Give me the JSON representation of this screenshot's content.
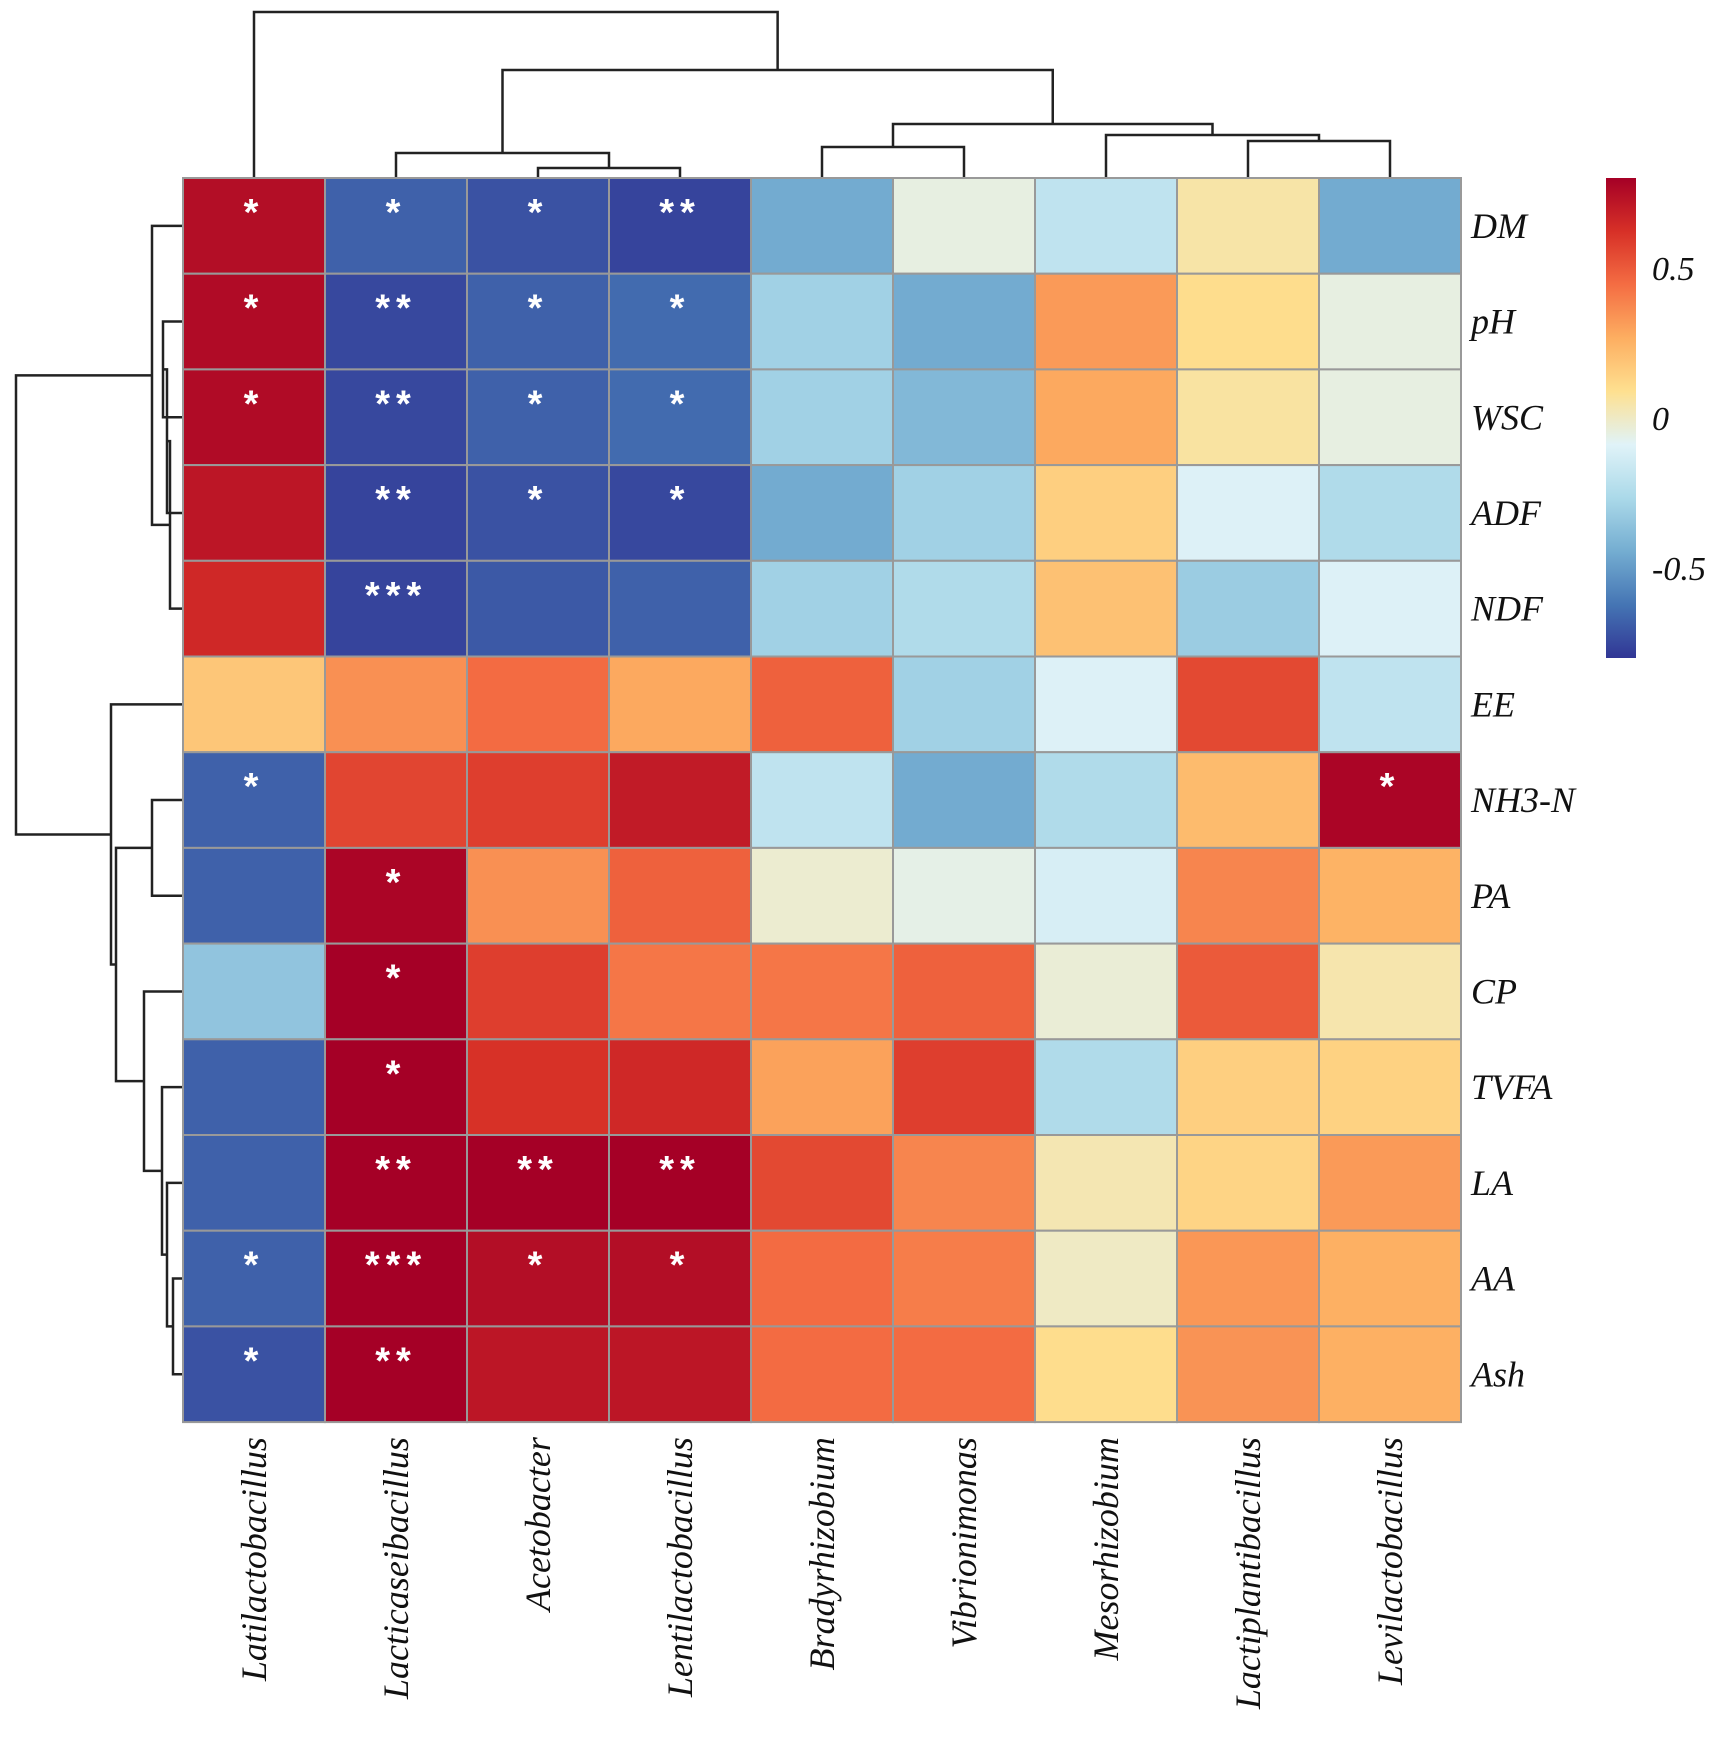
{
  "chart_data": {
    "type": "heatmap",
    "title": "",
    "columns": [
      "Latilactobacillus",
      "Lacticaseibacillus",
      "Acetobacter",
      "Lentilactobacillus",
      "Bradyrhizobium",
      "Vibrionimonas",
      "Mesorhizobium",
      "Lactiplantibacillus",
      "Levilactobacillus"
    ],
    "rows": [
      "DM",
      "pH",
      "WSC",
      "ADF",
      "NDF",
      "EE",
      "NH3-N",
      "PA",
      "CP",
      "TVFA",
      "LA",
      "AA",
      "Ash"
    ],
    "values": [
      [
        0.75,
        -0.68,
        -0.72,
        -0.76,
        -0.45,
        -0.05,
        -0.2,
        0.05,
        -0.45
      ],
      [
        0.76,
        -0.75,
        -0.68,
        -0.65,
        -0.3,
        -0.45,
        0.32,
        0.1,
        -0.05
      ],
      [
        0.76,
        -0.75,
        -0.68,
        -0.65,
        -0.3,
        -0.4,
        0.28,
        0.06,
        -0.05
      ],
      [
        0.72,
        -0.76,
        -0.72,
        -0.75,
        -0.45,
        -0.3,
        0.15,
        -0.1,
        -0.25
      ],
      [
        0.65,
        -0.76,
        -0.7,
        -0.68,
        -0.3,
        -0.25,
        0.2,
        -0.32,
        -0.1
      ],
      [
        0.18,
        0.35,
        0.45,
        0.28,
        0.48,
        -0.3,
        -0.1,
        0.55,
        -0.2
      ],
      [
        -0.68,
        0.56,
        0.58,
        0.7,
        -0.2,
        -0.45,
        -0.25,
        0.22,
        0.78
      ],
      [
        -0.68,
        0.78,
        0.35,
        0.48,
        -0.02,
        -0.06,
        -0.12,
        0.38,
        0.25
      ],
      [
        -0.35,
        0.8,
        0.58,
        0.42,
        0.42,
        0.48,
        -0.03,
        0.5,
        0.04
      ],
      [
        -0.68,
        0.85,
        0.62,
        0.65,
        0.3,
        0.58,
        -0.25,
        0.15,
        0.14
      ],
      [
        -0.68,
        0.86,
        0.83,
        0.86,
        0.55,
        0.38,
        0.03,
        0.13,
        0.32
      ],
      [
        -0.68,
        0.86,
        0.75,
        0.75,
        0.45,
        0.4,
        0.0,
        0.33,
        0.26
      ],
      [
        -0.72,
        0.86,
        0.72,
        0.72,
        0.45,
        0.45,
        0.1,
        0.34,
        0.26
      ]
    ],
    "significance": [
      [
        "*",
        "*",
        "*",
        "**",
        "",
        "",
        "",
        "",
        ""
      ],
      [
        "*",
        "**",
        "*",
        "*",
        "",
        "",
        "",
        "",
        ""
      ],
      [
        "*",
        "**",
        "*",
        "*",
        "",
        "",
        "",
        "",
        ""
      ],
      [
        "",
        "**",
        "*",
        "*",
        "",
        "",
        "",
        "",
        ""
      ],
      [
        "",
        "***",
        "",
        "",
        "",
        "",
        "",
        "",
        ""
      ],
      [
        "",
        "",
        "",
        "",
        "",
        "",
        "",
        "",
        ""
      ],
      [
        "*",
        "",
        "",
        "",
        "",
        "",
        "",
        "",
        "*"
      ],
      [
        "",
        "*",
        "",
        "",
        "",
        "",
        "",
        "",
        ""
      ],
      [
        "",
        "*",
        "",
        "",
        "",
        "",
        "",
        "",
        ""
      ],
      [
        "",
        "*",
        "",
        "",
        "",
        "",
        "",
        "",
        ""
      ],
      [
        "",
        "**",
        "**",
        "**",
        "",
        "",
        "",
        "",
        ""
      ],
      [
        "*",
        "***",
        "*",
        "*",
        "",
        "",
        "",
        "",
        ""
      ],
      [
        "*",
        "**",
        "",
        "",
        "",
        "",
        "",
        "",
        ""
      ]
    ],
    "colorbar": {
      "range": [
        -0.8,
        0.8
      ],
      "ticks": [
        0.5,
        0,
        -0.5
      ],
      "tick_labels": [
        "0.5",
        "0",
        "-0.5"
      ],
      "colors": [
        "#313695",
        "#4575b4",
        "#74add1",
        "#abd9e9",
        "#e0f3f8",
        "#fee090",
        "#fdae61",
        "#f46d43",
        "#d73027",
        "#a50026"
      ]
    },
    "cell_border_color": "#999999",
    "col_dendrogram": true,
    "row_dendrogram": true
  }
}
